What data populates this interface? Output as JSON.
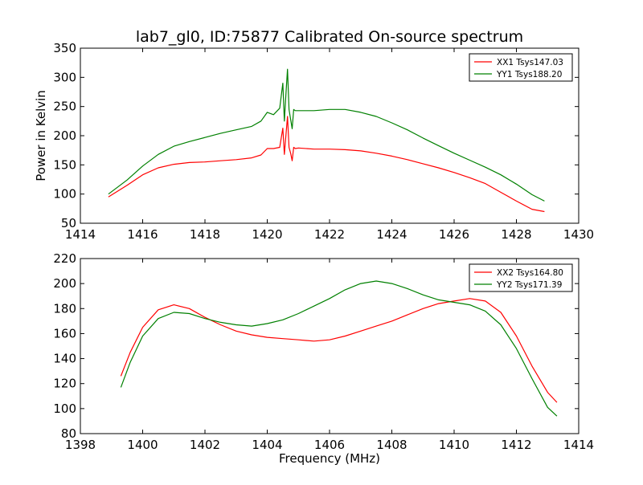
{
  "figure": {
    "title": "lab7_gl0, ID:75877 Calibrated On-source spectrum"
  },
  "chart_data": [
    {
      "type": "line",
      "title": "lab7_gl0, ID:75877 Calibrated On-source spectrum",
      "xlabel": "",
      "ylabel": "Power in Kelvin",
      "xlim": [
        1414,
        1430
      ],
      "ylim": [
        50,
        350
      ],
      "xticks": [
        "1414",
        "1416",
        "1418",
        "1420",
        "1422",
        "1424",
        "1426",
        "1428",
        "1430"
      ],
      "yticks": [
        "50",
        "100",
        "150",
        "200",
        "250",
        "300",
        "350"
      ],
      "grid": false,
      "legend_position": "top-right",
      "series": [
        {
          "name": "XX1 Tsys147.03",
          "color": "#ff0000",
          "x": [
            1414.9,
            1415.5,
            1416.0,
            1416.5,
            1417.0,
            1417.5,
            1418.0,
            1418.5,
            1419.0,
            1419.5,
            1419.8,
            1420.0,
            1420.2,
            1420.4,
            1420.5,
            1420.55,
            1420.6,
            1420.65,
            1420.7,
            1420.75,
            1420.8,
            1420.85,
            1420.9,
            1421.0,
            1421.5,
            1422.0,
            1422.5,
            1423.0,
            1423.5,
            1424.0,
            1424.5,
            1425.0,
            1425.5,
            1426.0,
            1426.5,
            1427.0,
            1427.5,
            1428.0,
            1428.5,
            1428.9
          ],
          "y": [
            95,
            115,
            133,
            145,
            151,
            154,
            155,
            157,
            159,
            162,
            167,
            178,
            178,
            180,
            213,
            168,
            200,
            233,
            180,
            170,
            157,
            180,
            178,
            179,
            177,
            177,
            176,
            174,
            170,
            165,
            159,
            152,
            145,
            137,
            128,
            118,
            103,
            88,
            74,
            70
          ]
        },
        {
          "name": "YY1 Tsys188.20",
          "color": "#008000",
          "x": [
            1414.9,
            1415.5,
            1416.0,
            1416.5,
            1417.0,
            1417.5,
            1418.0,
            1418.5,
            1419.0,
            1419.5,
            1419.8,
            1420.0,
            1420.2,
            1420.4,
            1420.5,
            1420.55,
            1420.6,
            1420.65,
            1420.7,
            1420.75,
            1420.8,
            1420.85,
            1420.9,
            1421.0,
            1421.5,
            1422.0,
            1422.5,
            1423.0,
            1423.5,
            1424.0,
            1424.5,
            1425.0,
            1425.5,
            1426.0,
            1426.5,
            1427.0,
            1427.5,
            1428.0,
            1428.5,
            1428.9
          ],
          "y": [
            100,
            124,
            148,
            168,
            182,
            190,
            197,
            204,
            210,
            216,
            225,
            240,
            236,
            247,
            290,
            225,
            270,
            314,
            245,
            228,
            212,
            245,
            243,
            243,
            243,
            245,
            245,
            240,
            233,
            222,
            210,
            196,
            183,
            170,
            158,
            146,
            133,
            117,
            99,
            88
          ]
        }
      ]
    },
    {
      "type": "line",
      "title": "",
      "xlabel": "Frequency (MHz)",
      "ylabel": "",
      "xlim": [
        1398,
        1414
      ],
      "ylim": [
        80,
        220
      ],
      "xticks": [
        "1398",
        "1400",
        "1402",
        "1404",
        "1406",
        "1408",
        "1410",
        "1412",
        "1414"
      ],
      "yticks": [
        "80",
        "100",
        "120",
        "140",
        "160",
        "180",
        "200",
        "220"
      ],
      "grid": false,
      "legend_position": "top-right",
      "series": [
        {
          "name": "XX2 Tsys164.80",
          "color": "#ff0000",
          "x": [
            1399.3,
            1399.6,
            1400.0,
            1400.5,
            1401.0,
            1401.5,
            1402.0,
            1402.5,
            1403.0,
            1403.5,
            1404.0,
            1404.5,
            1405.0,
            1405.5,
            1406.0,
            1406.5,
            1407.0,
            1407.5,
            1408.0,
            1408.5,
            1409.0,
            1409.5,
            1410.0,
            1410.5,
            1411.0,
            1411.5,
            1412.0,
            1412.5,
            1413.0,
            1413.3
          ],
          "y": [
            126,
            145,
            165,
            179,
            183,
            180,
            173,
            167,
            162,
            159,
            157,
            156,
            155,
            154,
            155,
            158,
            162,
            166,
            170,
            175,
            180,
            184,
            186,
            188,
            186,
            177,
            158,
            134,
            113,
            105
          ]
        },
        {
          "name": "YY2 Tsys171.39",
          "color": "#008000",
          "x": [
            1399.3,
            1399.6,
            1400.0,
            1400.5,
            1401.0,
            1401.5,
            1402.0,
            1402.5,
            1403.0,
            1403.5,
            1404.0,
            1404.5,
            1405.0,
            1405.5,
            1406.0,
            1406.5,
            1407.0,
            1407.5,
            1408.0,
            1408.5,
            1409.0,
            1409.5,
            1410.0,
            1410.5,
            1411.0,
            1411.5,
            1412.0,
            1412.5,
            1413.0,
            1413.3
          ],
          "y": [
            117,
            137,
            158,
            172,
            177,
            176,
            172,
            169,
            167,
            166,
            168,
            171,
            176,
            182,
            188,
            195,
            200,
            202,
            200,
            196,
            191,
            187,
            185,
            183,
            178,
            167,
            148,
            124,
            101,
            94
          ]
        }
      ]
    }
  ]
}
